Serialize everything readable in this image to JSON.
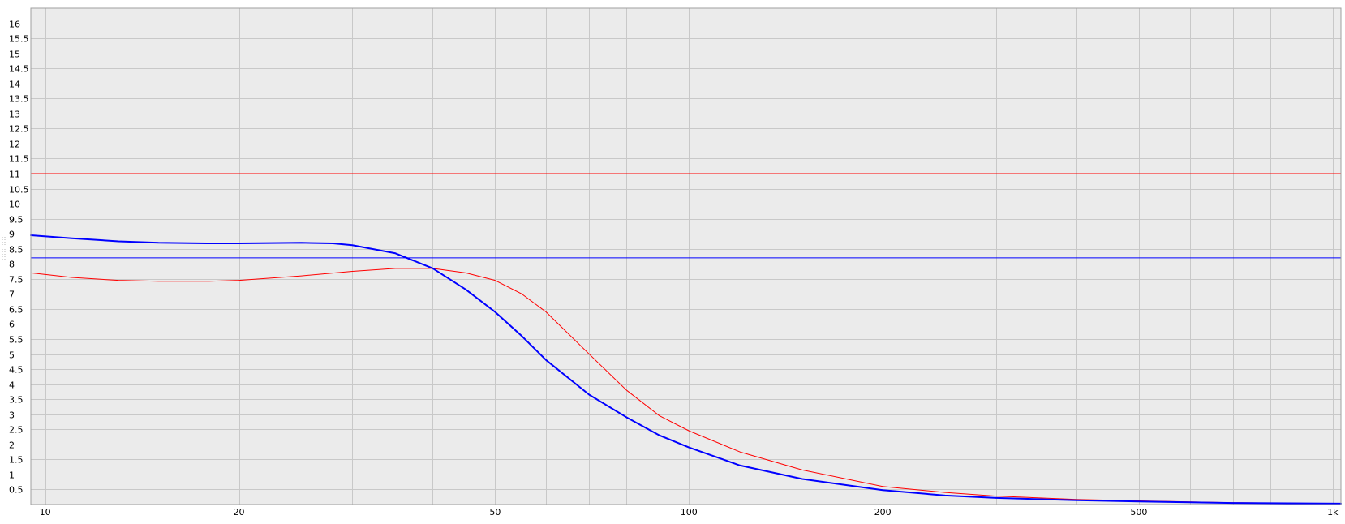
{
  "chart_data": {
    "type": "line",
    "x_scale": "log",
    "xlim": [
      9.5,
      1030
    ],
    "ylim": [
      0,
      16.5
    ],
    "grid": true,
    "legend": "none",
    "title": "",
    "xlabel": "",
    "ylabel": "",
    "x_ticks": [
      {
        "value": 10,
        "label": "10"
      },
      {
        "value": 20,
        "label": "20"
      },
      {
        "value": 50,
        "label": "50"
      },
      {
        "value": 100,
        "label": "100"
      },
      {
        "value": 200,
        "label": "200"
      },
      {
        "value": 500,
        "label": "500"
      },
      {
        "value": 1000,
        "label": "1k"
      }
    ],
    "x_minor_grid": [
      30,
      40,
      60,
      70,
      80,
      90,
      300,
      400,
      600,
      700,
      800,
      900
    ],
    "y_ticks": [
      0.5,
      1,
      1.5,
      2,
      2.5,
      3,
      3.5,
      4,
      4.5,
      5,
      5.5,
      6,
      6.5,
      7,
      7.5,
      8,
      8.5,
      9,
      9.5,
      10,
      10.5,
      11,
      11.5,
      12,
      12.5,
      13,
      13.5,
      14,
      14.5,
      15,
      15.5,
      16
    ],
    "y_tick_labels": [
      "0.5",
      "1",
      "1.5",
      "2",
      "2.5",
      "3",
      "3.5",
      "4",
      "4.5",
      "5",
      "5.5",
      "6",
      "6.5",
      "7",
      "7.5",
      "8",
      "8.5",
      "9",
      "9.5",
      "10",
      "10.5",
      "11",
      "11.5",
      "12",
      "12.5",
      "13",
      "13.5",
      "14",
      "14.5",
      "15",
      "15.5",
      "16"
    ],
    "series": [
      {
        "color": "#ff0000",
        "width": 1,
        "x": [
          9.5,
          11,
          13,
          15,
          18,
          20,
          25,
          30,
          35,
          40,
          45,
          50,
          55,
          60,
          70,
          80,
          90,
          100,
          120,
          150,
          200,
          250,
          300,
          400,
          500,
          700,
          1030
        ],
        "y": [
          7.7,
          7.55,
          7.45,
          7.42,
          7.42,
          7.45,
          7.6,
          7.75,
          7.85,
          7.85,
          7.7,
          7.45,
          7.0,
          6.4,
          5.0,
          3.8,
          2.95,
          2.45,
          1.75,
          1.15,
          0.6,
          0.4,
          0.28,
          0.17,
          0.12,
          0.06,
          0.03
        ]
      },
      {
        "color": "#0000ff",
        "width": 2,
        "x": [
          9.5,
          11,
          13,
          15,
          18,
          20,
          25,
          28,
          30,
          35,
          40,
          45,
          50,
          55,
          60,
          70,
          80,
          90,
          100,
          120,
          150,
          200,
          250,
          300,
          400,
          500,
          700,
          1030
        ],
        "y": [
          8.95,
          8.85,
          8.75,
          8.7,
          8.68,
          8.68,
          8.7,
          8.68,
          8.62,
          8.35,
          7.85,
          7.15,
          6.4,
          5.6,
          4.8,
          3.65,
          2.9,
          2.3,
          1.9,
          1.3,
          0.85,
          0.48,
          0.3,
          0.22,
          0.14,
          0.1,
          0.05,
          0.03
        ]
      },
      {
        "color": "#ff0000",
        "width": 1,
        "x": [
          9.5,
          1030
        ],
        "y": [
          11,
          11
        ]
      },
      {
        "color": "#0000ff",
        "width": 1,
        "x": [
          9.5,
          1030
        ],
        "y": [
          8.2,
          8.2
        ]
      }
    ]
  }
}
